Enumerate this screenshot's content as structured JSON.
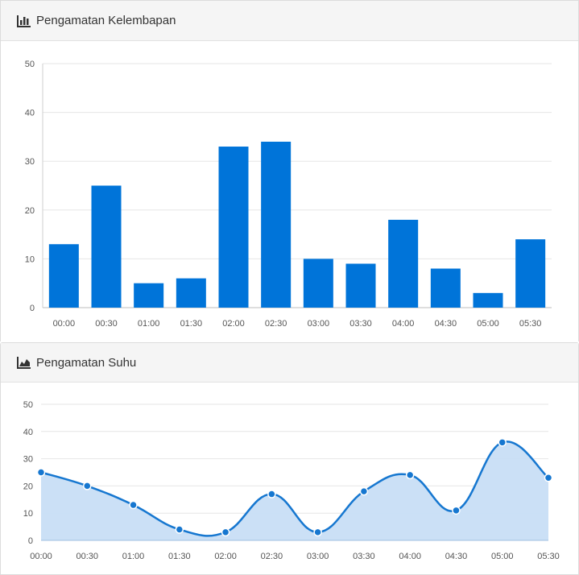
{
  "panels": {
    "humidity": {
      "title": "Pengamatan Kelembapan",
      "icon": "bar-chart-icon"
    },
    "temperature": {
      "title": "Pengamatan Suhu",
      "icon": "area-chart-icon"
    }
  },
  "colors": {
    "bar": "#0074d9",
    "line": "#1677d0",
    "area": "#c8def6",
    "grid": "#e6e6e6"
  },
  "chart_data": [
    {
      "type": "bar",
      "categories": [
        "00:00",
        "00:30",
        "01:00",
        "01:30",
        "02:00",
        "02:30",
        "03:00",
        "03:30",
        "04:00",
        "04:30",
        "05:00",
        "05:30"
      ],
      "values": [
        13,
        25,
        5,
        6,
        33,
        34,
        10,
        9,
        18,
        8,
        3,
        14
      ],
      "ylim": [
        0,
        50
      ],
      "yticks": [
        0,
        10,
        20,
        30,
        40,
        50
      ],
      "grid": true
    },
    {
      "type": "area",
      "categories": [
        "00:00",
        "00:30",
        "01:00",
        "01:30",
        "02:00",
        "02:30",
        "03:00",
        "03:30",
        "04:00",
        "04:30",
        "05:00",
        "05:30"
      ],
      "values": [
        25,
        20,
        13,
        4,
        3,
        17,
        3,
        18,
        24,
        11,
        36,
        23
      ],
      "ylim": [
        0,
        50
      ],
      "yticks": [
        0,
        10,
        20,
        30,
        40,
        50
      ],
      "grid": true
    }
  ]
}
